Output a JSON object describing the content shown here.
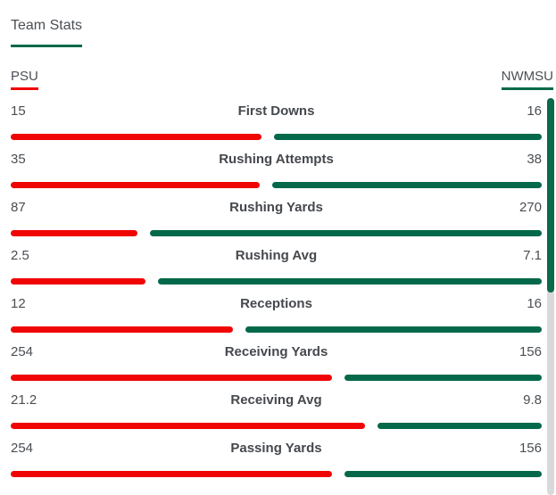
{
  "header": {
    "title": "Team Stats"
  },
  "teams": {
    "left": "PSU",
    "right": "NWMSU"
  },
  "stats": [
    {
      "label": "First Downs",
      "psu": 15,
      "nwmsu": 16
    },
    {
      "label": "Rushing Attempts",
      "psu": 35,
      "nwmsu": 38
    },
    {
      "label": "Rushing Yards",
      "psu": 87,
      "nwmsu": 270
    },
    {
      "label": "Rushing Avg",
      "psu": 2.5,
      "nwmsu": 7.1
    },
    {
      "label": "Receptions",
      "psu": 12,
      "nwmsu": 16
    },
    {
      "label": "Receiving Yards",
      "psu": 254,
      "nwmsu": 156
    },
    {
      "label": "Receiving Avg",
      "psu": 21.2,
      "nwmsu": 9.8
    },
    {
      "label": "Passing Yards",
      "psu": 254,
      "nwmsu": 156
    }
  ],
  "colors": {
    "psu_red": "#f00505",
    "nwmsu_green": "#04694a",
    "accent_underline_green": "#04694a",
    "scrollbar_thumb": "#0a6a4b",
    "scrollbar_track": "#d9d9d9",
    "text_gray": "#4a4e52"
  },
  "chart_data": {
    "type": "bar",
    "orientation": "horizontal-paired",
    "title": "Team Stats",
    "categories": [
      "First Downs",
      "Rushing Attempts",
      "Rushing Yards",
      "Rushing Avg",
      "Receptions",
      "Receiving Yards",
      "Receiving Avg",
      "Passing Yards"
    ],
    "series": [
      {
        "name": "PSU",
        "color": "#f00505",
        "values": [
          15,
          35,
          87,
          2.5,
          12,
          254,
          21.2,
          254
        ]
      },
      {
        "name": "NWMSU",
        "color": "#04694a",
        "values": [
          16,
          38,
          270,
          7.1,
          16,
          156,
          9.8,
          156
        ]
      }
    ],
    "legend": [
      "PSU",
      "NWMSU"
    ],
    "legend_position": "top",
    "grid": false,
    "bar_model": "each row is one track split proportionally: red width = psu/(psu+nwmsu), green = remainder, fixed gap between"
  }
}
